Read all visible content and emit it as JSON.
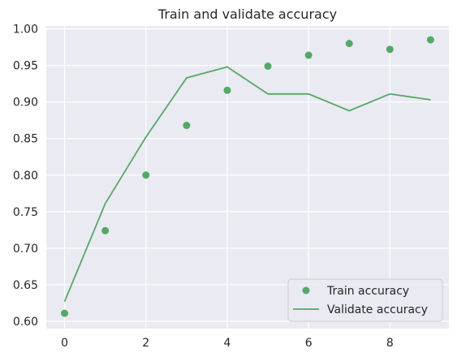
{
  "chart_data": {
    "type": "line",
    "title": "Train and validate accuracy",
    "xlabel": "",
    "ylabel": "",
    "xlim": [
      -0.45,
      9.45
    ],
    "ylim": [
      0.59,
      1.004
    ],
    "xticks": [
      0,
      2,
      4,
      6,
      8
    ],
    "yticks": [
      0.6,
      0.65,
      0.7,
      0.75,
      0.8,
      0.85,
      0.9,
      0.95,
      1.0
    ],
    "grid": true,
    "legend_position": "lower right",
    "colors": {
      "series": "#55a868",
      "plot_bg": "#eaeaf2",
      "grid": "#ffffff",
      "text": "#262626"
    },
    "series": [
      {
        "name": "Train accuracy",
        "kind": "scatter",
        "x": [
          0,
          1,
          2,
          3,
          4,
          5,
          6,
          7,
          8,
          9
        ],
        "y": [
          0.611,
          0.724,
          0.8,
          0.868,
          0.916,
          0.949,
          0.964,
          0.98,
          0.972,
          0.985
        ]
      },
      {
        "name": "Validate accuracy",
        "kind": "line",
        "x": [
          0,
          1,
          2,
          3,
          4,
          5,
          6,
          7,
          8,
          9
        ],
        "y": [
          0.627,
          0.761,
          0.852,
          0.933,
          0.948,
          0.911,
          0.911,
          0.888,
          0.911,
          0.903
        ]
      }
    ]
  }
}
